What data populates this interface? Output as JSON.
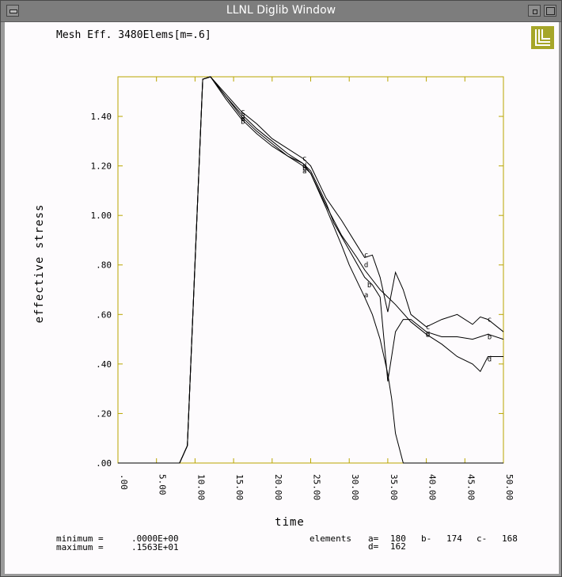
{
  "window": {
    "title": "LLNL Diglib Window"
  },
  "logo": {
    "name": "llnl-logo-icon",
    "color": "#a6a629"
  },
  "chart_data": {
    "type": "line",
    "title": "Mesh Eff. 3480Elems[m=.6]",
    "xlabel": "time",
    "ylabel": "effective stress",
    "xlim": [
      0,
      50
    ],
    "ylim": [
      0,
      1.56
    ],
    "xticks": [
      ".00",
      "5.00",
      "10.00",
      "15.00",
      "20.00",
      "25.00",
      "30.00",
      "35.00",
      "40.00",
      "45.00",
      "50.00"
    ],
    "yticks": [
      ".00",
      ".20",
      ".40",
      ".60",
      ".80",
      "1.00",
      "1.20",
      "1.40"
    ],
    "ytick_values": [
      0,
      0.2,
      0.4,
      0.6,
      0.8,
      1.0,
      1.2,
      1.4
    ],
    "axis_color": "#b9a600",
    "line_color": "#000000",
    "series": [
      {
        "name": "a",
        "x": [
          0,
          8,
          9,
          11,
          12,
          14,
          16,
          18,
          20,
          22,
          24,
          25,
          27,
          29,
          30,
          32,
          33,
          34,
          35,
          35.5,
          36,
          37,
          38,
          50
        ],
        "y": [
          0,
          0,
          0.07,
          1.55,
          1.56,
          1.47,
          1.39,
          1.33,
          1.28,
          1.24,
          1.21,
          1.17,
          1.03,
          0.88,
          0.8,
          0.67,
          0.6,
          0.5,
          0.36,
          0.26,
          0.12,
          0,
          0,
          0
        ],
        "markers": [
          [
            16.2,
            1.39
          ],
          [
            24.2,
            1.18
          ],
          [
            32.2,
            0.68
          ]
        ]
      },
      {
        "name": "b",
        "x": [
          0,
          8,
          9,
          11,
          12,
          14,
          16,
          18,
          20,
          22,
          24,
          25,
          27,
          28,
          30,
          32,
          33,
          34,
          35,
          36,
          37,
          38,
          40,
          42,
          44,
          46,
          48,
          50
        ],
        "y": [
          0,
          0,
          0.07,
          1.55,
          1.56,
          1.48,
          1.41,
          1.35,
          1.3,
          1.25,
          1.21,
          1.18,
          1.05,
          0.97,
          0.86,
          0.75,
          0.72,
          0.67,
          0.33,
          0.53,
          0.58,
          0.58,
          0.53,
          0.51,
          0.51,
          0.5,
          0.52,
          0.5
        ],
        "markers": [
          [
            16.2,
            1.38
          ],
          [
            24.2,
            1.19
          ],
          [
            32.6,
            0.72
          ],
          [
            40.2,
            0.52
          ],
          [
            48.2,
            0.51
          ]
        ]
      },
      {
        "name": "c",
        "x": [
          0,
          8,
          9,
          11,
          12,
          14,
          16,
          18,
          20,
          22,
          24,
          25,
          27,
          29,
          31,
          32,
          33,
          34,
          35,
          36,
          37,
          38,
          40,
          42,
          44,
          46,
          47,
          48,
          50
        ],
        "y": [
          0,
          0,
          0.07,
          1.55,
          1.56,
          1.49,
          1.42,
          1.37,
          1.31,
          1.27,
          1.23,
          1.2,
          1.07,
          0.98,
          0.88,
          0.83,
          0.84,
          0.75,
          0.61,
          0.77,
          0.7,
          0.6,
          0.55,
          0.58,
          0.6,
          0.56,
          0.59,
          0.58,
          0.53
        ],
        "markers": [
          [
            16.2,
            1.42
          ],
          [
            24.2,
            1.23
          ],
          [
            32.2,
            0.84
          ],
          [
            40.2,
            0.55
          ],
          [
            48.2,
            0.58
          ]
        ]
      },
      {
        "name": "d",
        "x": [
          0,
          8,
          9,
          11,
          12,
          14,
          16,
          18,
          20,
          22,
          24,
          25,
          27,
          29,
          31,
          32,
          34,
          36,
          38,
          40,
          42,
          44,
          46,
          47,
          48,
          50
        ],
        "y": [
          0,
          0,
          0.07,
          1.55,
          1.56,
          1.48,
          1.4,
          1.34,
          1.29,
          1.24,
          1.2,
          1.17,
          1.04,
          0.92,
          0.83,
          0.78,
          0.7,
          0.64,
          0.57,
          0.52,
          0.48,
          0.43,
          0.4,
          0.37,
          0.43,
          0.43
        ],
        "markers": [
          [
            16.2,
            1.4
          ],
          [
            24.2,
            1.2
          ],
          [
            32.2,
            0.8
          ],
          [
            40.2,
            0.52
          ],
          [
            48.2,
            0.42
          ]
        ]
      }
    ],
    "stats": {
      "minimum_label": "minimum =",
      "minimum_value": ".0000E+00",
      "maximum_label": "maximum =",
      "maximum_value": ".1563E+01"
    },
    "elements": {
      "label": "elements",
      "a_label": "a=",
      "a_value": "180",
      "b_label": "b-",
      "b_value": "174",
      "c_label": "c-",
      "c_value": "168",
      "d_label": "d=",
      "d_value": "162"
    }
  }
}
